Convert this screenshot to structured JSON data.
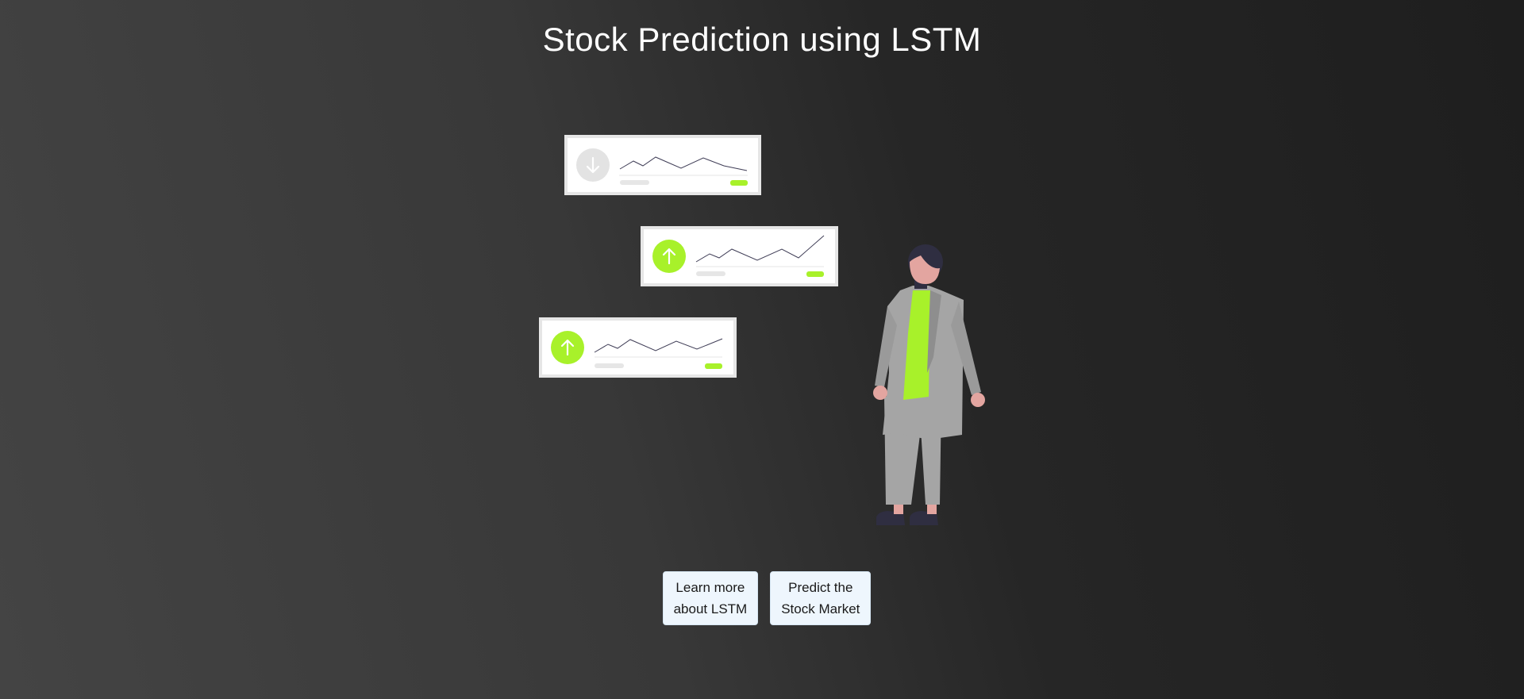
{
  "page": {
    "title": "Stock Prediction using LSTM"
  },
  "illustration": {
    "cards": [
      {
        "trend": "down",
        "icon": "arrow-down-icon",
        "icon_color": "#e0e0e0"
      },
      {
        "trend": "up",
        "icon": "arrow-up-icon",
        "icon_color": "#a8f12a"
      },
      {
        "trend": "up",
        "icon": "arrow-up-icon",
        "icon_color": "#a8f12a"
      }
    ],
    "accent_color": "#a8f12a"
  },
  "buttons": {
    "learn_more": {
      "line1": "Learn more",
      "line2": "about LSTM"
    },
    "predict": {
      "line1": "Predict the",
      "line2": "Stock Market"
    }
  }
}
